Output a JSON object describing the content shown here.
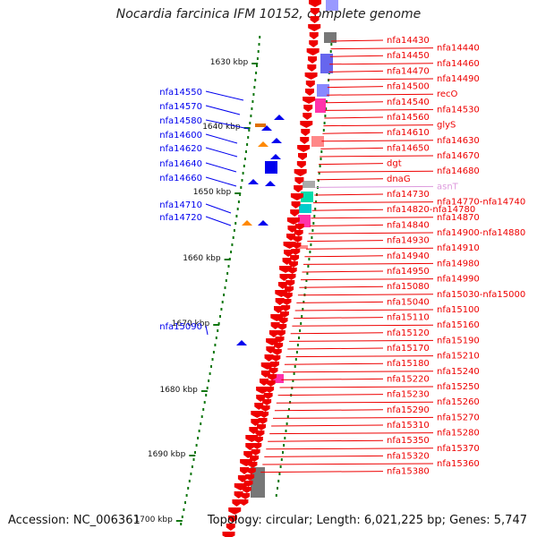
{
  "title": "Nocardia farcinica IFM 10152, complete genome",
  "accession": "Accession: NC_006361",
  "topology": "Topology: circular; Length: 6,021,225 bp; Genes: 5,747",
  "colors": {
    "forward": "#ee0000",
    "reverse": "#0000ee",
    "tick": "#117711",
    "pseudo": "#dd99dd",
    "backbone": "#777777"
  },
  "ticks": [
    {
      "label": "1630 kbp"
    },
    {
      "label": "1640 kbp"
    },
    {
      "label": "1650 kbp"
    },
    {
      "label": "1660 kbp"
    },
    {
      "label": "1670 kbp"
    },
    {
      "label": "1680 kbp"
    },
    {
      "label": "1690 kbp"
    },
    {
      "label": "1700 kbp"
    }
  ],
  "left_genes": [
    "nfa14550",
    "nfa14570",
    "nfa14580",
    "nfa14600",
    "nfa14620",
    "nfa14640",
    "nfa14660",
    "nfa14710",
    "nfa14720",
    "nfa15090"
  ],
  "right_genes": [
    "nfa14430",
    "nfa14440",
    "nfa14450",
    "nfa14460",
    "nfa14470",
    "nfa14490",
    "nfa14500",
    "recO",
    "nfa14540",
    "nfa14530",
    "nfa14560",
    "glyS",
    "nfa14610",
    "nfa14630",
    "nfa14650",
    "nfa14670",
    "dgt",
    "nfa14680",
    "dnaG",
    "asnT",
    "nfa14730",
    "nfa14770-nfa14740",
    "nfa14820-nfa14780",
    "nfa14870",
    "nfa14840",
    "nfa14900-nfa14880",
    "nfa14930",
    "nfa14910",
    "nfa14940",
    "nfa14980",
    "nfa14950",
    "nfa14990",
    "nfa15080",
    "nfa15030-nfa15000",
    "nfa15040",
    "nfa15100",
    "nfa15110",
    "nfa15160",
    "nfa15120",
    "nfa15190",
    "nfa15170",
    "nfa15210",
    "nfa15180",
    "nfa15240",
    "nfa15220",
    "nfa15250",
    "nfa15230",
    "nfa15260",
    "nfa15290",
    "nfa15270",
    "nfa15310",
    "nfa15280",
    "nfa15350",
    "nfa15370",
    "nfa15320",
    "nfa15360",
    "nfa15380"
  ]
}
